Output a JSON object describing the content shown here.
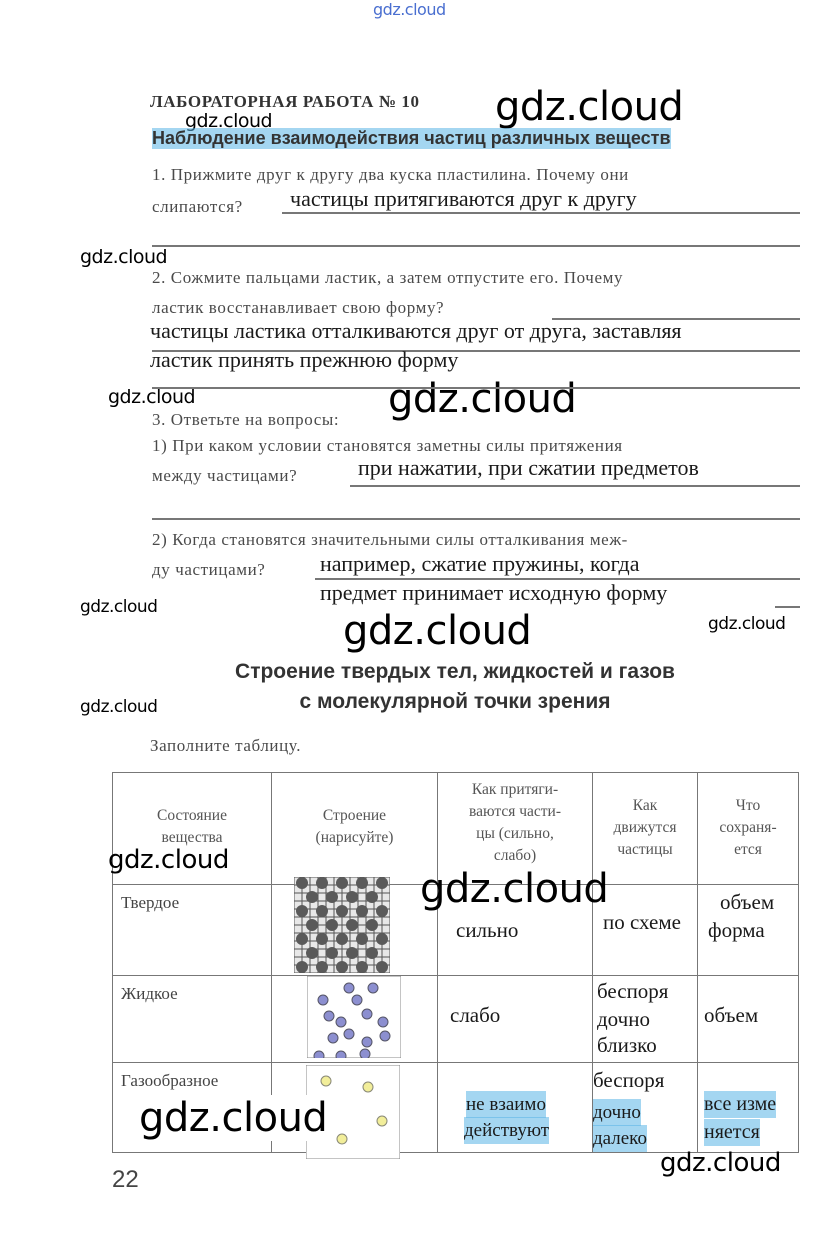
{
  "watermark": "gdz.cloud",
  "lab_title": "ЛАБОРАТОРНАЯ РАБОТА № 10",
  "lab_subtitle": "Наблюдение взаимодействия частиц различных веществ",
  "q1": {
    "line1": "1. Прижмите друг к другу два куска пластилина. Почему они",
    "line2": "слипаются?",
    "answer": "частицы притягиваются друг к другу"
  },
  "q2": {
    "line1": "2. Сожмите пальцами ластик, а затем отпустите его. Почему",
    "line2": "ластик восстанавливает свою форму?",
    "answer_line1": "частицы ластика отталкиваются друг от друга, заставляя",
    "answer_line2": "ластик принять прежнюю форму"
  },
  "q3": {
    "title": "3. Ответьте на вопросы:",
    "sub1_line1": "1) При каком условии становятся заметны силы притяжения",
    "sub1_line2": "между частицами?",
    "sub1_answer": "при нажатии, при сжатии предметов",
    "sub2_line1": "2) Когда становятся значительными силы отталкивания меж-",
    "sub2_line2": "ду частицами?",
    "sub2_answer_line1": "например, сжатие пружины, когда",
    "sub2_answer_line2": "предмет принимает исходную форму"
  },
  "section": {
    "title_line1": "Строение твердых тел, жидкостей и газов",
    "title_line2": "с молекулярной точки зрения",
    "instruction": "Заполните таблицу."
  },
  "table": {
    "headers": [
      "Состояние вещества",
      "Строение (нарисуйте)",
      "Как притягиваются частицы (сильно, слабо)",
      "Как движутся частицы",
      "Что сохраняется"
    ],
    "header_lines": [
      [
        "Состояние",
        "вещества"
      ],
      [
        "Строение",
        "(нарисуйте)"
      ],
      [
        "Как притяги-",
        "ваются части-",
        "цы (сильно,",
        "слабо)"
      ],
      [
        "Как",
        "движутся",
        "частицы"
      ],
      [
        "Что",
        "сохраня-",
        "ется"
      ]
    ],
    "rows": [
      {
        "state": "Твердое",
        "attraction": "сильно",
        "motion": "по схеме",
        "preserved": [
          "объем",
          "форма"
        ],
        "drawing": "solid-lattice"
      },
      {
        "state": "Жидкое",
        "attraction": "слабо",
        "motion": [
          "беспоря",
          "дочно",
          "близко"
        ],
        "preserved": [
          "объем"
        ],
        "drawing": "liquid-particles"
      },
      {
        "state": "Газообразное",
        "attraction": [
          "не взаимо",
          "действуют"
        ],
        "motion": [
          "беспоря",
          "дочно",
          "далеко"
        ],
        "preserved": [
          "все изме",
          "няется"
        ],
        "drawing": "gas-particles"
      }
    ]
  },
  "page_number": "22",
  "colors": {
    "highlight": "#5ab4e6",
    "liquid_dot": "#8c8fd0",
    "gas_dot": "#f2ee9a",
    "solid_dot": "#5a5a5a"
  }
}
